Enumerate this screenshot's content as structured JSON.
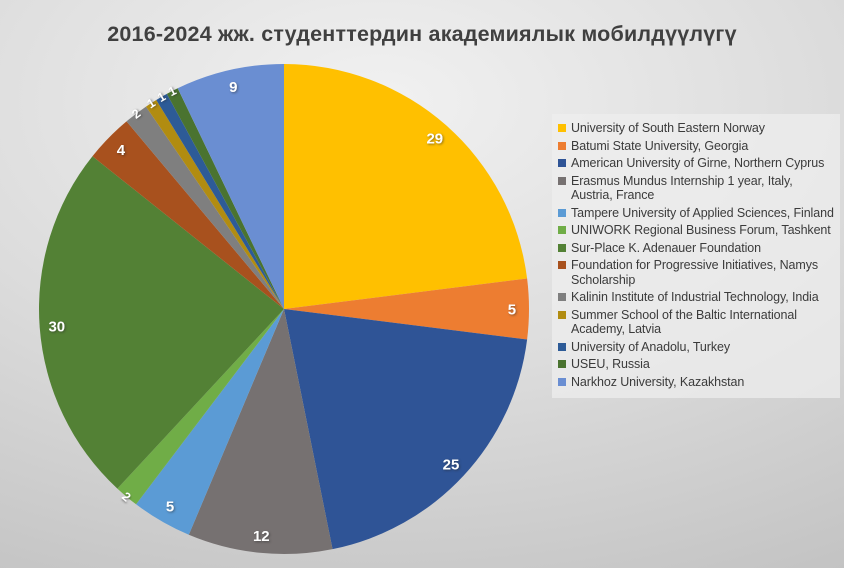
{
  "chart_data": {
    "type": "pie",
    "title": "2016-2024 жж. студенттердин академиялык мобилдүүлүгү",
    "legend_position": "right",
    "data_labels": "values",
    "label_text_color": "#FFFFFF",
    "title_color": "#404040",
    "background": "gray radial gradient",
    "total": 126,
    "slices": [
      {
        "label": "University of South Eastern Norway",
        "value": 29,
        "color": "#FFC000"
      },
      {
        "label": "Batumi State University, Georgia",
        "value": 5,
        "color": "#ED7D31"
      },
      {
        "label": "American University of Girne, Northern Cyprus",
        "value": 25,
        "color": "#2F5496"
      },
      {
        "label": "Erasmus Mundus Internship 1 year, Italy, Austria, France",
        "value": 12,
        "color": "#767171"
      },
      {
        "label": "Tampere University of Applied Sciences, Finland",
        "value": 5,
        "color": "#5B9BD5"
      },
      {
        "label": "UNIWORK Regional Business Forum, Tashkent",
        "value": 2,
        "color": "#70AD47"
      },
      {
        "label": "Sur-Place K. Adenauer  Foundation",
        "value": 30,
        "color": "#538135"
      },
      {
        "label": "Foundation for Progressive Initiatives, Namys Scholarship",
        "value": 4,
        "color": "#A8511E"
      },
      {
        "label": "Kalinin Institute of Industrial Technology, India",
        "value": 2,
        "color": "#7F7F7F"
      },
      {
        "label": "Summer School of the Baltic International Academy, Latvia",
        "value": 1,
        "color": "#B18C11"
      },
      {
        "label": "University of Anadolu, Turkey",
        "value": 1,
        "color": "#2D5B97"
      },
      {
        "label": "USEU, Russia",
        "value": 1,
        "color": "#4A7330"
      },
      {
        "label": "Narkhoz University, Kazakhstan",
        "value": 9,
        "color": "#6A8ED2"
      }
    ]
  }
}
